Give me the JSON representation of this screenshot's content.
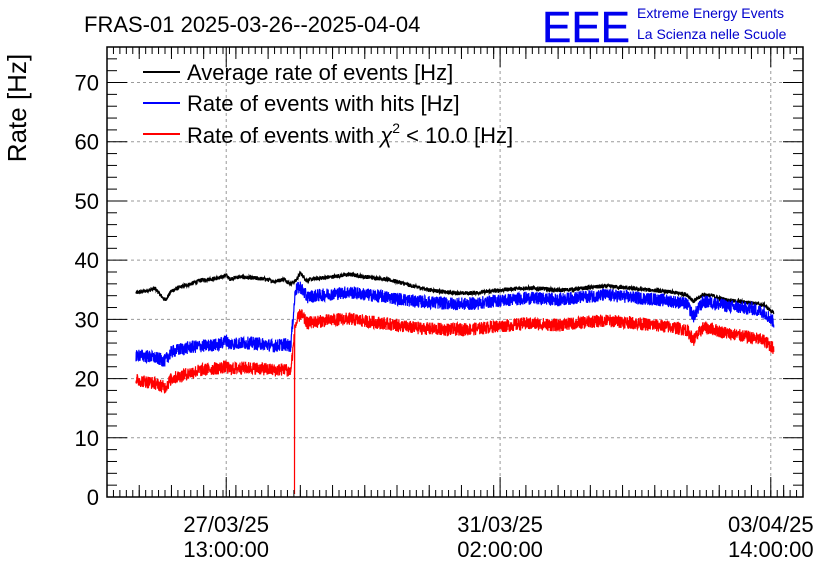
{
  "chart_data": {
    "type": "line",
    "title": "FRAS-01 2025-03-26--2025-04-04",
    "xlabel": "",
    "ylabel": "Rate [Hz]",
    "ylim": [
      0,
      76
    ],
    "y_ticks": [
      0,
      10,
      20,
      30,
      40,
      50,
      60,
      70
    ],
    "x_unit": "hours since 2025-03-26 00:00",
    "xlim": [
      0,
      216
    ],
    "x_ticks": [
      {
        "x": 37,
        "date": "27/03/25",
        "time": "13:00:00"
      },
      {
        "x": 122,
        "date": "31/03/25",
        "time": "02:00:00"
      },
      {
        "x": 206,
        "date": "03/04/25",
        "time": "14:00:00"
      }
    ],
    "grid": true,
    "legend_position": "top-left",
    "legend_chi_symbol": "χ",
    "legend_chi_power": "2",
    "series": [
      {
        "name": "Average rate of events [Hz]",
        "legend_label": "Average rate of events [Hz]",
        "color": "#000000",
        "noise": 0.35,
        "x": [
          9,
          12,
          15,
          18,
          20,
          23,
          26,
          29,
          32,
          35,
          37,
          38,
          41,
          45,
          49,
          52,
          55,
          57,
          58.5,
          60,
          62,
          65,
          70,
          75,
          80,
          85,
          90,
          95,
          100,
          105,
          110,
          115,
          120,
          125,
          130,
          135,
          140,
          145,
          150,
          155,
          160,
          165,
          170,
          175,
          180,
          182,
          185,
          188,
          190,
          193,
          196,
          200,
          204,
          207
        ],
        "y": [
          34.5,
          34.8,
          35.2,
          33.2,
          34.8,
          35.5,
          36.0,
          36.6,
          36.8,
          37.0,
          37.5,
          36.8,
          37.2,
          37.0,
          36.8,
          36.4,
          36.8,
          36.0,
          36.5,
          37.8,
          36.6,
          36.9,
          37.2,
          37.6,
          37.2,
          36.9,
          36.4,
          35.6,
          35.0,
          34.6,
          34.4,
          34.5,
          34.8,
          35.1,
          35.3,
          35.2,
          34.9,
          35.1,
          35.4,
          35.6,
          35.4,
          35.1,
          34.9,
          34.6,
          34.2,
          33.0,
          34.2,
          34.0,
          33.6,
          33.2,
          33.0,
          32.8,
          32.4,
          31.0
        ]
      },
      {
        "name": "Rate of events with hits [Hz]",
        "legend_label": "Rate of events with hits [Hz]",
        "color": "#0000ff",
        "noise": 1.1,
        "x": [
          9,
          12,
          15,
          18,
          20,
          23,
          26,
          29,
          32,
          35,
          37,
          38,
          41,
          45,
          49,
          52,
          55,
          57,
          58.5,
          60,
          62,
          65,
          70,
          75,
          80,
          85,
          90,
          95,
          100,
          105,
          110,
          115,
          120,
          125,
          130,
          135,
          140,
          145,
          150,
          155,
          160,
          165,
          170,
          175,
          180,
          182,
          185,
          188,
          190,
          193,
          196,
          200,
          204,
          207
        ],
        "y": [
          24.0,
          23.8,
          23.5,
          23.0,
          24.5,
          25.0,
          25.3,
          25.5,
          25.6,
          25.8,
          26.5,
          25.8,
          26.0,
          26.0,
          25.8,
          25.5,
          25.8,
          25.5,
          35.0,
          35.5,
          33.8,
          34.0,
          34.3,
          34.6,
          34.2,
          33.9,
          33.5,
          33.1,
          32.9,
          32.7,
          32.6,
          32.7,
          33.1,
          33.3,
          33.6,
          33.5,
          33.3,
          33.6,
          33.9,
          34.1,
          33.9,
          33.6,
          33.4,
          33.1,
          32.6,
          30.5,
          33.0,
          32.8,
          32.5,
          32.2,
          32.0,
          31.8,
          31.2,
          29.5
        ]
      },
      {
        "name": "Rate of events with χ2 < 10.0 [Hz]",
        "legend_label": "Rate of events with ",
        "legend_label_suffix": " < 10.0 [Hz]",
        "color": "#ff0000",
        "noise": 1.1,
        "spike": {
          "x": 58.2,
          "y": 0.5
        },
        "x": [
          9,
          12,
          15,
          18,
          20,
          23,
          26,
          29,
          32,
          35,
          37,
          38,
          41,
          45,
          49,
          52,
          55,
          57,
          58.5,
          60,
          62,
          65,
          70,
          75,
          80,
          85,
          90,
          95,
          100,
          105,
          110,
          115,
          120,
          125,
          130,
          135,
          140,
          145,
          150,
          155,
          160,
          165,
          170,
          175,
          180,
          182,
          185,
          188,
          190,
          193,
          196,
          200,
          204,
          207
        ],
        "y": [
          19.8,
          19.5,
          19.2,
          18.5,
          20.0,
          20.5,
          21.0,
          21.4,
          21.6,
          21.8,
          22.0,
          21.6,
          21.8,
          21.8,
          21.6,
          21.4,
          21.6,
          21.2,
          29.0,
          31.0,
          29.4,
          29.6,
          29.9,
          30.1,
          29.7,
          29.4,
          29.0,
          28.6,
          28.4,
          28.3,
          28.3,
          28.4,
          28.8,
          29.0,
          29.3,
          29.2,
          29.0,
          29.3,
          29.6,
          29.8,
          29.6,
          29.3,
          29.0,
          28.7,
          28.2,
          26.5,
          28.6,
          28.4,
          28.0,
          27.6,
          27.3,
          26.9,
          26.4,
          25.0
        ]
      }
    ]
  },
  "logo": {
    "mark": "EEE",
    "line1": "Extreme Energy Events",
    "line2": "La Scienza nelle Scuole"
  }
}
